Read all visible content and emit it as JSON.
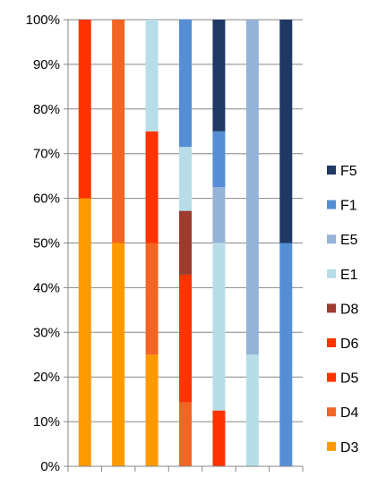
{
  "chart_data": {
    "type": "bar",
    "stacked": true,
    "normalized_percent": true,
    "title": "",
    "xlabel": "",
    "ylabel": "",
    "ylim": [
      0,
      100
    ],
    "y_tick_labels": [
      "0%",
      "10%",
      "20%",
      "30%",
      "40%",
      "50%",
      "60%",
      "70%",
      "80%",
      "90%",
      "100%"
    ],
    "grid": true,
    "legend_position": "right",
    "categories": [
      "",
      "",
      "",
      "",
      "",
      "",
      ""
    ],
    "series": [
      {
        "name": "D3",
        "color": "#FF9900",
        "values": [
          60,
          50,
          25,
          0,
          0,
          0,
          0
        ]
      },
      {
        "name": "D4",
        "color": "#F26522",
        "values": [
          0,
          50,
          25,
          14.3,
          0,
          0,
          0
        ]
      },
      {
        "name": "D5",
        "color": "#FF3300",
        "values": [
          40,
          0,
          25,
          28.6,
          12.5,
          0,
          0
        ]
      },
      {
        "name": "D6",
        "color": "#FF3300",
        "values": [
          0,
          0,
          0,
          0,
          0,
          0,
          0
        ]
      },
      {
        "name": "D8",
        "color": "#9E3A2E",
        "values": [
          0,
          0,
          0,
          14.3,
          0,
          0,
          0
        ]
      },
      {
        "name": "E1",
        "color": "#B7DEE8",
        "values": [
          0,
          0,
          25,
          14.3,
          37.5,
          25,
          0
        ]
      },
      {
        "name": "E5",
        "color": "#95B3D7",
        "values": [
          0,
          0,
          0,
          0,
          12.5,
          75,
          0
        ]
      },
      {
        "name": "F1",
        "color": "#558ED5",
        "values": [
          0,
          0,
          0,
          28.6,
          12.5,
          0,
          50
        ]
      },
      {
        "name": "F5",
        "color": "#1F3864",
        "values": [
          0,
          0,
          0,
          0,
          25,
          0,
          50
        ]
      }
    ],
    "legend_order": [
      "F5",
      "F1",
      "E5",
      "E1",
      "D8",
      "D6",
      "D5",
      "D4",
      "D3"
    ]
  }
}
